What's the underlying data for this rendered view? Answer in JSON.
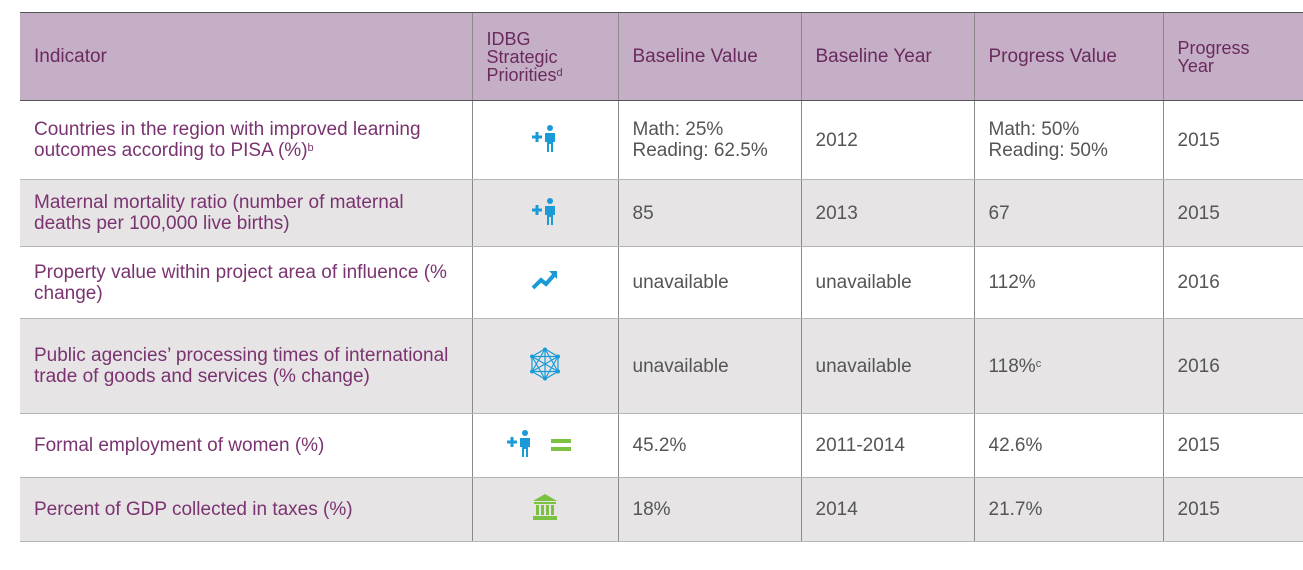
{
  "table": {
    "header": [
      "Indicator",
      {
        "text": "IDBG Strategic Priorities",
        "sup": "d"
      },
      "Baseline Value",
      "Baseline Year",
      "Progress Value",
      "Progress Year"
    ],
    "rows": [
      [
        {
          "text": "Countries in the region with improved learning outcomes according to PISA (%)",
          "sup": "b"
        },
        [
          "Math: 25%",
          "Reading: 62.5%"
        ],
        "2012",
        [
          "Math: 50%",
          "Reading: 50%"
        ],
        "2015"
      ],
      [
        "Maternal mortality ratio (number of maternal deaths per 100,000 live births)",
        "85",
        "2013",
        "67",
        "2015"
      ],
      [
        "Property value within project area of influence (% change)",
        "unavailable",
        "unavailable",
        "112%",
        "2016"
      ],
      [
        "Public agencies’ processing times of international trade of goods and services (% change)",
        "unavailable",
        "unavailable",
        {
          "text": "118%",
          "sup": "c"
        },
        "2016"
      ],
      [
        "Formal employment of women (%)",
        "45.2%",
        "2011-2014",
        "42.6%",
        "2015"
      ],
      [
        "Percent of GDP collected in taxes (%)",
        "18%",
        "2014",
        "21.7%",
        "2015"
      ]
    ]
  }
}
